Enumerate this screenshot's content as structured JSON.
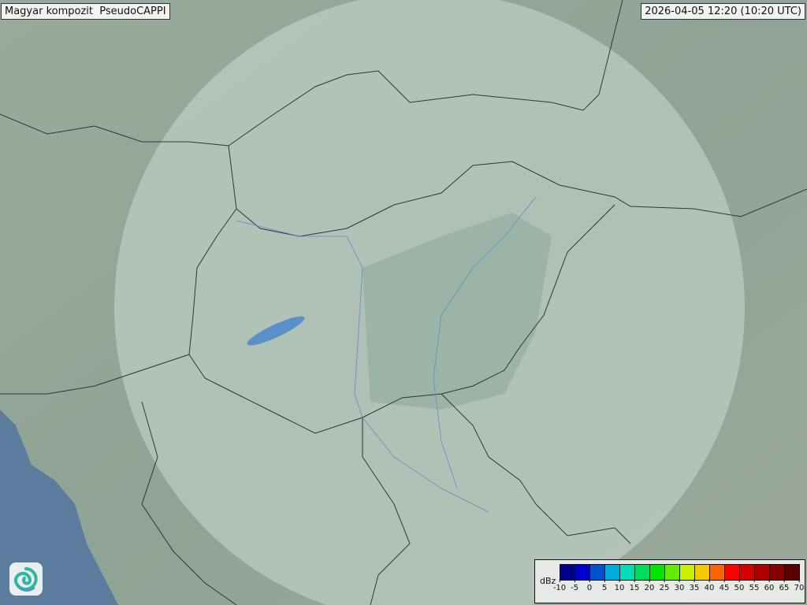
{
  "title": "Magyar kompozit  PseudoCAPPI",
  "timestamp": "2026-04-05 12:20 (10:20 UTC)",
  "logo_icon": "swirl-logo-icon",
  "legend": {
    "unit": "dBz",
    "ticks": [
      "-10",
      "-5",
      "0",
      "5",
      "10",
      "15",
      "20",
      "25",
      "30",
      "35",
      "40",
      "45",
      "50",
      "55",
      "60",
      "65",
      "70"
    ],
    "colors": [
      "#00008c",
      "#0000cd",
      "#0050d2",
      "#00aadc",
      "#00dcb4",
      "#00dc5a",
      "#00e600",
      "#64eb00",
      "#c8f000",
      "#f5c800",
      "#ff6400",
      "#ff0000",
      "#d70000",
      "#af0000",
      "#870000",
      "#5a0000"
    ]
  },
  "map_colors": {
    "land": "#8fa497",
    "sea": "#5c7c9e",
    "radar_coverage": "#c9d8d0",
    "border": "#333333",
    "river": "#5a8fc8"
  }
}
